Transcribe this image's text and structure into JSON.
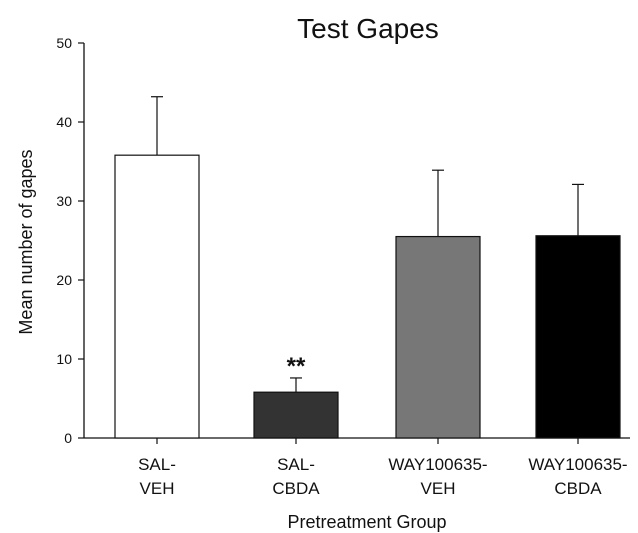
{
  "chart_data": {
    "type": "bar",
    "title": "Test Gapes",
    "xlabel": "Pretreatment Group",
    "ylabel": "Mean number of gapes",
    "ylim": [
      0,
      50
    ],
    "yticks": [
      "0",
      "10",
      "20",
      "30",
      "40",
      "50"
    ],
    "grid": false,
    "categories": [
      [
        "SAL-",
        "VEH"
      ],
      [
        "SAL-",
        "CBDA"
      ],
      [
        "WAY100635-",
        "VEH"
      ],
      [
        "WAY100635-",
        "CBDA"
      ]
    ],
    "values": [
      35.8,
      5.8,
      25.5,
      25.6
    ],
    "errors": [
      7.4,
      1.8,
      8.4,
      6.5
    ],
    "bar_colors": [
      "#ffffff",
      "#333333",
      "#777777",
      "#000000"
    ],
    "annotations": [
      {
        "category_index": 1,
        "text": "**"
      }
    ]
  }
}
